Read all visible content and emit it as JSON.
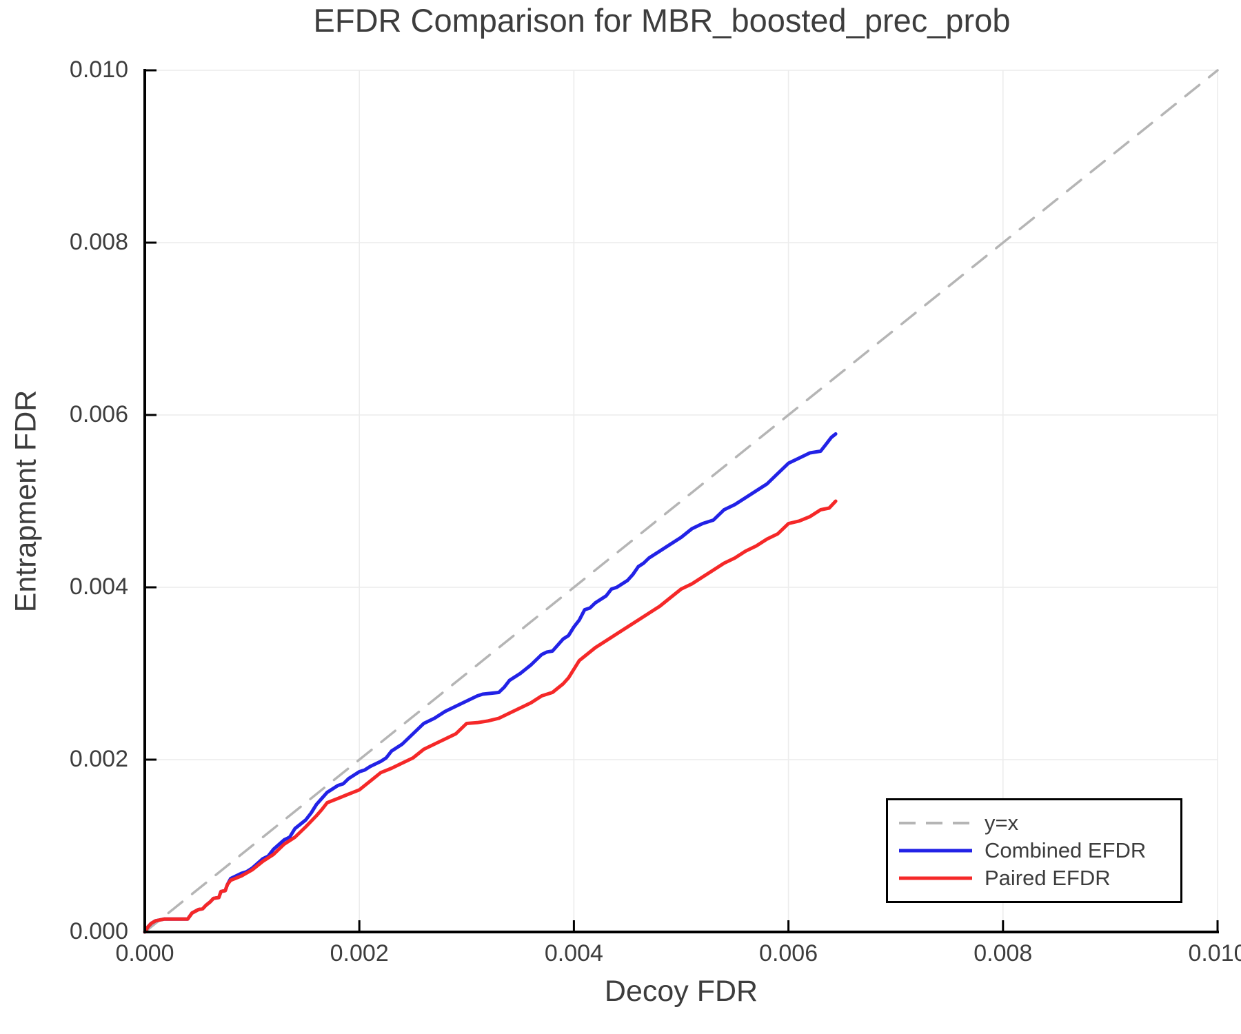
{
  "title": "EFDR Comparison for MBR_boosted_prec_prob",
  "axes": {
    "xlabel": "Decoy FDR",
    "ylabel": "Entrapment FDR"
  },
  "legend": {
    "position": "lower right",
    "items": [
      {
        "name": "y-equals-x",
        "label": "y=x",
        "color": "#b5b5b5",
        "dash": true
      },
      {
        "name": "combined-efdr",
        "label": "Combined EFDR",
        "color": "#2222e6",
        "dash": false
      },
      {
        "name": "paired-efdr",
        "label": "Paired EFDR",
        "color": "#f52828",
        "dash": false
      }
    ]
  },
  "colors": {
    "background": "#ffffff",
    "grid": "#ececec",
    "spine": "#000000",
    "text": "#3d3d3d",
    "reference_line": "#b5b5b5",
    "combined_efdr": "#2222e6",
    "paired_efdr": "#f52828"
  },
  "chart_data": {
    "type": "line",
    "title": "EFDR Comparison for MBR_boosted_prec_prob",
    "xlabel": "Decoy FDR",
    "ylabel": "Entrapment FDR",
    "xlim": [
      0,
      0.01
    ],
    "ylim": [
      0,
      0.01
    ],
    "x_ticks": [
      0,
      0.002,
      0.004,
      0.006,
      0.008,
      0.01
    ],
    "x_tick_labels": [
      "0.000",
      "0.002",
      "0.004",
      "0.006",
      "0.008",
      "0.010"
    ],
    "y_ticks": [
      0,
      0.002,
      0.004,
      0.006,
      0.008,
      0.01
    ],
    "y_tick_labels": [
      "0.000",
      "0.002",
      "0.004",
      "0.006",
      "0.008",
      "0.010"
    ],
    "grid": true,
    "legend_position": "lower right",
    "series": [
      {
        "name": "y=x",
        "role": "reference",
        "color": "#b5b5b5",
        "dash": true,
        "width": 3.5,
        "x": [
          0,
          0.01
        ],
        "y": [
          0,
          0.01
        ]
      },
      {
        "name": "Combined EFDR",
        "role": "data",
        "color": "#2222e6",
        "dash": false,
        "width": 5,
        "x": [
          0,
          3e-05,
          6e-05,
          0.0001,
          0.00018,
          0.0004,
          0.00044,
          0.0005,
          0.00054,
          0.00057,
          0.00061,
          0.00064,
          0.00069,
          0.00071,
          0.00075,
          0.00077,
          0.0008,
          0.0009,
          0.00095,
          0.001,
          0.0011,
          0.00115,
          0.0012,
          0.0013,
          0.00135,
          0.0014,
          0.0015,
          0.00155,
          0.0016,
          0.00165,
          0.0017,
          0.00175,
          0.0018,
          0.00185,
          0.0019,
          0.002,
          0.00205,
          0.0021,
          0.0022,
          0.00225,
          0.0023,
          0.0024,
          0.0025,
          0.0026,
          0.0027,
          0.0028,
          0.0029,
          0.003,
          0.0031,
          0.00315,
          0.0033,
          0.00335,
          0.0034,
          0.0035,
          0.0036,
          0.0037,
          0.00375,
          0.0038,
          0.0039,
          0.00395,
          0.004,
          0.00405,
          0.0041,
          0.00415,
          0.0042,
          0.0043,
          0.00435,
          0.0044,
          0.0045,
          0.00455,
          0.0046,
          0.00465,
          0.0047,
          0.0048,
          0.0049,
          0.005,
          0.0051,
          0.0052,
          0.0053,
          0.0054,
          0.0055,
          0.0056,
          0.0057,
          0.0058,
          0.0059,
          0.006,
          0.0061,
          0.0062,
          0.0063,
          0.00635,
          0.0064,
          0.00644
        ],
        "y": [
          0,
          6e-05,
          0.0001,
          0.00013,
          0.00015,
          0.00015,
          0.00022,
          0.00026,
          0.00027,
          0.00031,
          0.00035,
          0.00039,
          0.0004,
          0.00047,
          0.00048,
          0.00055,
          0.00062,
          0.00068,
          0.0007,
          0.00074,
          0.00085,
          0.00088,
          0.00096,
          0.00107,
          0.0011,
          0.0012,
          0.0013,
          0.00138,
          0.00148,
          0.00155,
          0.00162,
          0.00166,
          0.0017,
          0.00172,
          0.00178,
          0.00186,
          0.00188,
          0.00192,
          0.00198,
          0.00202,
          0.0021,
          0.00218,
          0.0023,
          0.00242,
          0.00248,
          0.00256,
          0.00262,
          0.00268,
          0.00274,
          0.00276,
          0.00278,
          0.00284,
          0.00292,
          0.003,
          0.0031,
          0.00322,
          0.00325,
          0.00326,
          0.0034,
          0.00344,
          0.00354,
          0.00362,
          0.00374,
          0.00376,
          0.00382,
          0.0039,
          0.00398,
          0.004,
          0.00408,
          0.00415,
          0.00424,
          0.00428,
          0.00434,
          0.00442,
          0.0045,
          0.00458,
          0.00468,
          0.00474,
          0.00478,
          0.0049,
          0.00496,
          0.00504,
          0.00512,
          0.0052,
          0.00532,
          0.00544,
          0.0055,
          0.00556,
          0.00558,
          0.00566,
          0.00574,
          0.00578
        ]
      },
      {
        "name": "Paired EFDR",
        "role": "data",
        "color": "#f52828",
        "dash": false,
        "width": 5,
        "x": [
          0,
          3e-05,
          6e-05,
          0.0001,
          0.00018,
          0.0004,
          0.00044,
          0.0005,
          0.00054,
          0.00057,
          0.00061,
          0.00064,
          0.00069,
          0.00071,
          0.00075,
          0.00077,
          0.0008,
          0.0009,
          0.001,
          0.0011,
          0.0012,
          0.0013,
          0.0014,
          0.0015,
          0.0016,
          0.00165,
          0.0017,
          0.0018,
          0.0019,
          0.002,
          0.0021,
          0.0022,
          0.0023,
          0.0024,
          0.0025,
          0.0026,
          0.0027,
          0.0028,
          0.0029,
          0.003,
          0.0031,
          0.0032,
          0.0033,
          0.0034,
          0.0035,
          0.0036,
          0.0037,
          0.0038,
          0.0039,
          0.00395,
          0.004,
          0.00405,
          0.0041,
          0.0042,
          0.0043,
          0.0044,
          0.0045,
          0.0046,
          0.0047,
          0.0048,
          0.0049,
          0.005,
          0.0051,
          0.0052,
          0.0053,
          0.0054,
          0.0055,
          0.0056,
          0.0057,
          0.0058,
          0.0059,
          0.006,
          0.0061,
          0.0062,
          0.0063,
          0.00638,
          0.00644
        ],
        "y": [
          0,
          6e-05,
          0.0001,
          0.00013,
          0.00015,
          0.00015,
          0.00022,
          0.00026,
          0.00027,
          0.00031,
          0.00035,
          0.00039,
          0.0004,
          0.00047,
          0.00048,
          0.00055,
          0.0006,
          0.00065,
          0.00072,
          0.00082,
          0.0009,
          0.00102,
          0.0011,
          0.00122,
          0.00135,
          0.00142,
          0.0015,
          0.00155,
          0.0016,
          0.00165,
          0.00175,
          0.00185,
          0.0019,
          0.00196,
          0.00202,
          0.00212,
          0.00218,
          0.00224,
          0.0023,
          0.00242,
          0.00243,
          0.00245,
          0.00248,
          0.00254,
          0.0026,
          0.00266,
          0.00274,
          0.00278,
          0.00288,
          0.00295,
          0.00305,
          0.00315,
          0.0032,
          0.0033,
          0.00338,
          0.00346,
          0.00354,
          0.00362,
          0.0037,
          0.00378,
          0.00388,
          0.00398,
          0.00404,
          0.00412,
          0.0042,
          0.00428,
          0.00434,
          0.00442,
          0.00448,
          0.00456,
          0.00462,
          0.00474,
          0.00477,
          0.00482,
          0.0049,
          0.00492,
          0.005
        ]
      }
    ]
  }
}
